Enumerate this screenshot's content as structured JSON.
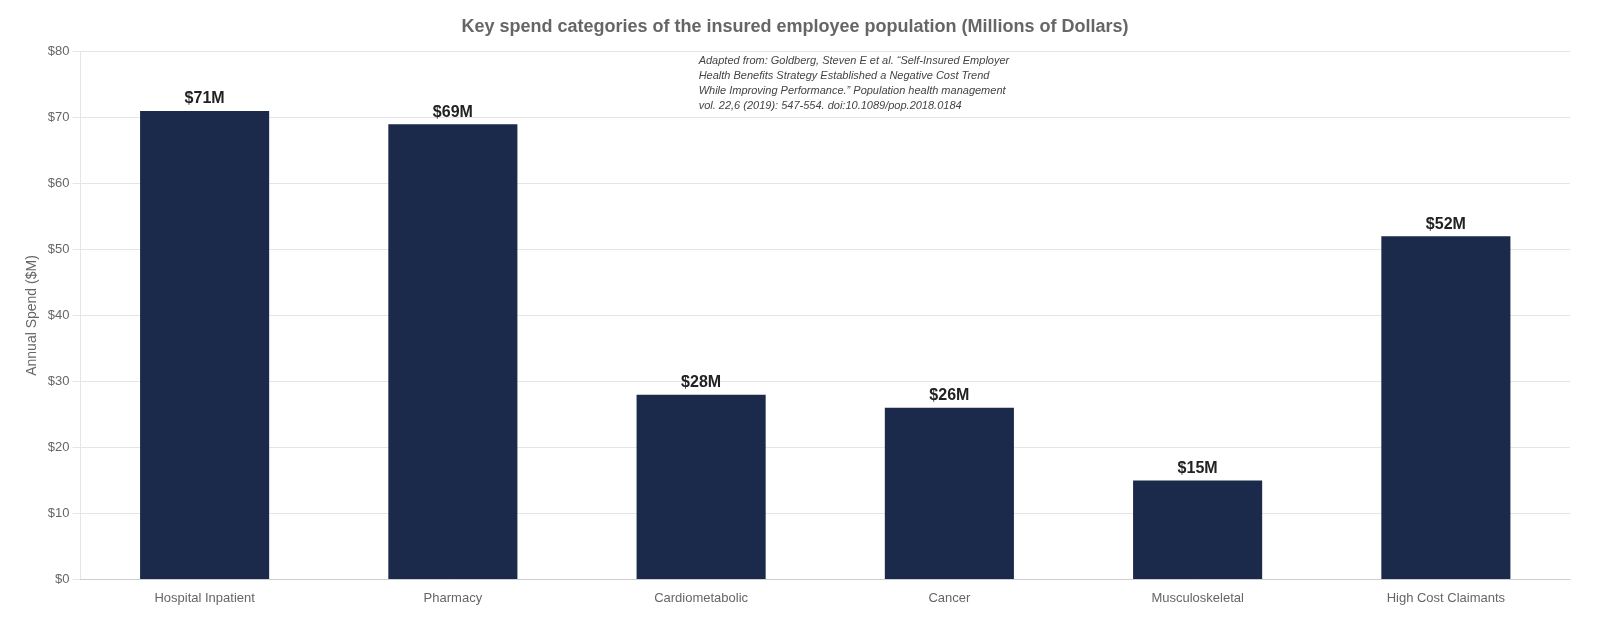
{
  "chart_data": {
    "type": "bar",
    "title": "Key spend categories of the insured employee population (Millions of Dollars)",
    "ylabel": "Annual Spend ($M)",
    "categories": [
      "Hospital Inpatient",
      "Pharmacy",
      "Cardiometabolic",
      "Cancer",
      "Musculoskeletal",
      "High Cost Claimants"
    ],
    "values": [
      71,
      69,
      28,
      26,
      15,
      52
    ],
    "value_labels": [
      "$71M",
      "$69M",
      "$28M",
      "$26M",
      "$15M",
      "$52M"
    ],
    "color": "#1b2a4a",
    "ylim": [
      0,
      80
    ],
    "yticks": [
      {
        "value": 0,
        "label": "$0"
      },
      {
        "value": 10,
        "label": "$10"
      },
      {
        "value": 20,
        "label": "$20"
      },
      {
        "value": 30,
        "label": "$30"
      },
      {
        "value": 40,
        "label": "$40"
      },
      {
        "value": 50,
        "label": "$50"
      },
      {
        "value": 60,
        "label": "$60"
      },
      {
        "value": 70,
        "label": "$70"
      },
      {
        "value": 80,
        "label": "$80"
      }
    ],
    "grid": true,
    "data_labels": true,
    "annotations": [
      "Adapted from: Goldberg, Steven E et al. “Self-Insured Employer",
      "Health Benefits Strategy Established a Negative Cost Trend",
      "While Improving Performance.” Population health management",
      "vol. 22,6 (2019): 547-554. doi:10.1089/pop.2018.0184"
    ]
  }
}
